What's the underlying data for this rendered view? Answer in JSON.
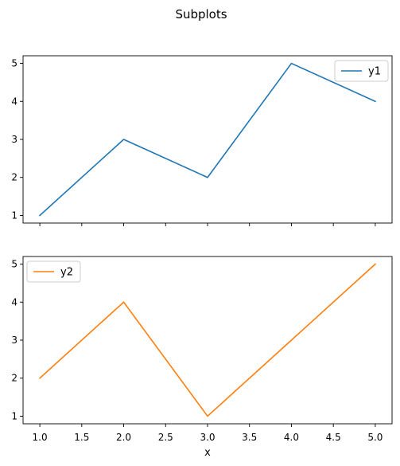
{
  "figure": {
    "title": "Subplots"
  },
  "chart_data": [
    {
      "type": "line",
      "x": [
        1,
        2,
        3,
        4,
        5
      ],
      "series": [
        {
          "name": "y1",
          "values": [
            1,
            3,
            2,
            5,
            4
          ],
          "color": "#1f77b4"
        }
      ],
      "xlim": [
        0.8,
        5.2
      ],
      "ylim": [
        0.8,
        5.2
      ],
      "xticks": [
        1.0,
        1.5,
        2.0,
        2.5,
        3.0,
        3.5,
        4.0,
        4.5,
        5.0
      ],
      "yticks": [
        1,
        2,
        3,
        4,
        5
      ],
      "ytick_labels": [
        "1",
        "2",
        "3",
        "4",
        "5"
      ],
      "xlabel": "",
      "legend": "upper-right",
      "grid": false,
      "show_xtick_labels": false
    },
    {
      "type": "line",
      "x": [
        1,
        2,
        3,
        4,
        5
      ],
      "series": [
        {
          "name": "y2",
          "values": [
            2,
            4,
            1,
            3,
            5
          ],
          "color": "#ff7f0e"
        }
      ],
      "xlim": [
        0.8,
        5.2
      ],
      "ylim": [
        0.8,
        5.2
      ],
      "xticks": [
        1.0,
        1.5,
        2.0,
        2.5,
        3.0,
        3.5,
        4.0,
        4.5,
        5.0
      ],
      "xtick_labels": [
        "1.0",
        "1.5",
        "2.0",
        "2.5",
        "3.0",
        "3.5",
        "4.0",
        "4.5",
        "5.0"
      ],
      "yticks": [
        1,
        2,
        3,
        4,
        5
      ],
      "ytick_labels": [
        "1",
        "2",
        "3",
        "4",
        "5"
      ],
      "xlabel": "x",
      "legend": "upper-left",
      "grid": false,
      "show_xtick_labels": true
    }
  ]
}
